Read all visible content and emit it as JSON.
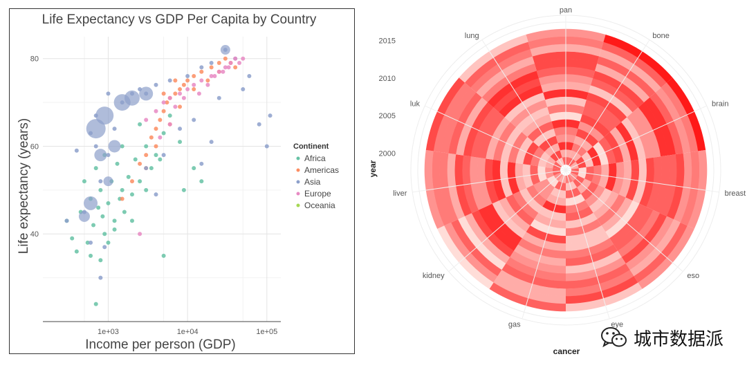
{
  "chart_data": [
    {
      "type": "scatter",
      "title": "Life Expectancy vs GDP Per Capita by Country",
      "xlabel": "Income per person (GDP)",
      "ylabel": "Life expectancy (years)",
      "x_scale": "log10",
      "xlim": [
        150,
        150000
      ],
      "ylim": [
        20,
        85
      ],
      "x_ticks": [
        1000,
        10000,
        100000
      ],
      "x_tick_labels": [
        "1e+03",
        "1e+04",
        "1e+05"
      ],
      "y_ticks": [
        40,
        60,
        80
      ],
      "y_tick_labels": [
        "40",
        "60",
        "80"
      ],
      "grid": true,
      "legend": {
        "title": "Continent",
        "placement": "right",
        "entries": [
          "Africa",
          "Americas",
          "Asia",
          "Europe",
          "Oceania"
        ]
      },
      "series": [
        {
          "name": "Africa",
          "color": "#66c2a5",
          "points": [
            [
              300,
              43
            ],
            [
              450,
              45
            ],
            [
              500,
              52
            ],
            [
              550,
              38
            ],
            [
              600,
              48
            ],
            [
              650,
              42
            ],
            [
              700,
              55
            ],
            [
              750,
              46
            ],
            [
              800,
              50
            ],
            [
              850,
              44
            ],
            [
              900,
              40
            ],
            [
              1000,
              47
            ],
            [
              1100,
              52
            ],
            [
              1200,
              43
            ],
            [
              1300,
              56
            ],
            [
              1400,
              48
            ],
            [
              1500,
              50
            ],
            [
              1600,
              45
            ],
            [
              1800,
              53
            ],
            [
              2000,
              49
            ],
            [
              2200,
              57
            ],
            [
              2500,
              52
            ],
            [
              3000,
              60
            ],
            [
              3500,
              55
            ],
            [
              4000,
              58
            ],
            [
              5000,
              63
            ],
            [
              6000,
              67
            ],
            [
              8000,
              61
            ],
            [
              12000,
              55
            ],
            [
              700,
              24
            ],
            [
              400,
              36
            ],
            [
              350,
              39
            ],
            [
              1000,
              38
            ],
            [
              2000,
              43
            ],
            [
              3000,
              50
            ],
            [
              1500,
              60
            ],
            [
              900,
              58
            ],
            [
              2500,
              65
            ],
            [
              4500,
              57
            ],
            [
              600,
              35
            ],
            [
              1200,
              41
            ],
            [
              800,
              34
            ],
            [
              5000,
              35
            ],
            [
              9000,
              50
            ],
            [
              15000,
              52
            ]
          ]
        },
        {
          "name": "Americas",
          "color": "#fc8d62",
          "points": [
            [
              1500,
              48
            ],
            [
              2000,
              52
            ],
            [
              2500,
              56
            ],
            [
              3000,
              58
            ],
            [
              3500,
              62
            ],
            [
              4000,
              64
            ],
            [
              4500,
              66
            ],
            [
              5000,
              68
            ],
            [
              5500,
              70
            ],
            [
              6000,
              71
            ],
            [
              7000,
              72
            ],
            [
              8000,
              73
            ],
            [
              9000,
              74
            ],
            [
              10000,
              75
            ],
            [
              12000,
              76
            ],
            [
              15000,
              77
            ],
            [
              20000,
              78
            ],
            [
              25000,
              79
            ],
            [
              30000,
              80
            ],
            [
              35000,
              79
            ],
            [
              40000,
              78
            ],
            [
              4000,
              60
            ],
            [
              6000,
              65
            ],
            [
              8000,
              69
            ],
            [
              3000,
              55
            ],
            [
              12000,
              73
            ],
            [
              18000,
              75
            ],
            [
              25000,
              77
            ],
            [
              5000,
              72
            ],
            [
              7000,
              75
            ]
          ]
        },
        {
          "name": "Asia",
          "color": "#8da0cb",
          "points": [
            [
              300,
              43
            ],
            [
              500,
              45
            ],
            [
              600,
              63
            ],
            [
              700,
              67
            ],
            [
              800,
              52
            ],
            [
              1000,
              58
            ],
            [
              1200,
              64
            ],
            [
              1500,
              70
            ],
            [
              2000,
              72
            ],
            [
              2500,
              73
            ],
            [
              3000,
              72
            ],
            [
              1000,
              72
            ],
            [
              4000,
              74
            ],
            [
              6000,
              75
            ],
            [
              10000,
              76
            ],
            [
              15000,
              78
            ],
            [
              20000,
              79
            ],
            [
              30000,
              82
            ],
            [
              40000,
              80
            ],
            [
              60000,
              76
            ],
            [
              80000,
              65
            ],
            [
              100000,
              60
            ],
            [
              110000,
              67
            ],
            [
              600,
              38
            ],
            [
              800,
              30
            ],
            [
              400,
              59
            ],
            [
              700,
              60
            ],
            [
              900,
              37
            ],
            [
              50000,
              73
            ],
            [
              25000,
              71
            ],
            [
              12000,
              66
            ],
            [
              8000,
              64
            ],
            [
              5000,
              58
            ],
            [
              15000,
              56
            ],
            [
              20000,
              61
            ],
            [
              4000,
              49
            ],
            [
              3000,
              55
            ]
          ],
          "big": [
            [
              700,
              64,
              14
            ],
            [
              900,
              67,
              13
            ],
            [
              1500,
              70,
              12
            ],
            [
              2000,
              71,
              11
            ],
            [
              3000,
              72,
              10
            ],
            [
              600,
              47,
              10
            ],
            [
              800,
              58,
              9
            ],
            [
              1200,
              60,
              9
            ],
            [
              500,
              44,
              8
            ],
            [
              30000,
              82,
              7
            ],
            [
              1000,
              52,
              7
            ]
          ]
        },
        {
          "name": "Europe",
          "color": "#e78ac3",
          "points": [
            [
              3000,
              66
            ],
            [
              4000,
              68
            ],
            [
              5000,
              70
            ],
            [
              6000,
              71
            ],
            [
              8000,
              72
            ],
            [
              10000,
              73
            ],
            [
              12000,
              74
            ],
            [
              15000,
              75
            ],
            [
              20000,
              76
            ],
            [
              25000,
              77
            ],
            [
              30000,
              78
            ],
            [
              35000,
              79
            ],
            [
              40000,
              80
            ],
            [
              45000,
              79
            ],
            [
              50000,
              80
            ],
            [
              7000,
              69
            ],
            [
              9000,
              71
            ],
            [
              14000,
              72
            ],
            [
              18000,
              74
            ],
            [
              22000,
              76
            ],
            [
              28000,
              77
            ],
            [
              33000,
              78
            ],
            [
              4500,
              62
            ],
            [
              6000,
              65
            ],
            [
              2500,
              40
            ]
          ]
        },
        {
          "name": "Oceania",
          "color": "#a6d854",
          "points": []
        }
      ]
    },
    {
      "type": "heatmap",
      "subtype": "polar",
      "xlabel": "cancer",
      "ylabel": "year",
      "categories": [
        "pan",
        "bone",
        "brain",
        "breast",
        "eso",
        "eye",
        "gas",
        "kidney",
        "liver",
        "luk",
        "lung"
      ],
      "years": [
        1999,
        2000,
        2001,
        2002,
        2003,
        2004,
        2005,
        2006,
        2007,
        2008,
        2009,
        2010,
        2011,
        2012,
        2013,
        2014,
        2015,
        2016
      ],
      "y_ticks": [
        2000,
        2005,
        2010,
        2015
      ],
      "y_tick_labels": [
        "2000",
        "2005",
        "2010",
        "2015"
      ],
      "color_low": "#fff5f0",
      "color_high": "#ff0000",
      "values": [
        [
          0.6,
          0.3,
          0.8,
          0.4,
          0.5,
          0.8,
          0.1,
          0.5,
          0.2,
          0.8,
          0.3,
          0.4,
          0.6,
          0.7,
          0.7,
          0.3,
          0.5,
          0.4
        ],
        [
          0.6,
          0.3,
          0.5,
          0.3,
          0.7,
          0.4,
          0.7,
          0.6,
          0.6,
          0.7,
          0.2,
          0.6,
          0.7,
          0.3,
          0.6,
          0.3,
          0.6,
          0.9
        ],
        [
          0.3,
          0.7,
          0.2,
          0.8,
          0.1,
          0.6,
          0.7,
          0.3,
          0.8,
          0.2,
          0.4,
          0.4,
          0.8,
          0.8,
          0.6,
          0.4,
          0.5,
          0.9
        ],
        [
          0.6,
          0.1,
          0.6,
          0.5,
          0.3,
          0.8,
          0.4,
          0.3,
          0.7,
          0.2,
          0.7,
          0.6,
          0.6,
          0.6,
          0.7,
          0.4,
          0.5,
          0.4
        ],
        [
          0.4,
          0.6,
          0.3,
          0.6,
          0.4,
          0.2,
          0.3,
          0.5,
          0.3,
          0.1,
          0.6,
          0.6,
          0.5,
          0.7,
          0.4,
          0.3,
          0.6,
          0.4
        ],
        [
          0.5,
          0.2,
          0.6,
          0.1,
          0.5,
          0.6,
          0.2,
          0.5,
          0.2,
          0.2,
          0.5,
          0.6,
          0.2,
          0.4,
          0.6,
          0.5,
          0.7,
          0.2
        ],
        [
          0.3,
          0.6,
          0.2,
          0.3,
          0.8,
          0.2,
          0.3,
          0.1,
          0.7,
          0.3,
          0.5,
          0.3,
          0.4,
          0.5,
          0.6,
          0.3,
          0.3,
          0.6
        ],
        [
          0.4,
          0.1,
          0.4,
          0.4,
          0.5,
          0.2,
          0.5,
          0.6,
          0.3,
          0.2,
          0.8,
          0.8,
          0.7,
          0.3,
          0.1,
          0.6,
          0.4,
          0.1
        ],
        [
          0.6,
          0.4,
          0.1,
          0.6,
          0.2,
          0.3,
          0.8,
          0.2,
          0.8,
          0.7,
          0.4,
          0.4,
          0.6,
          0.7,
          0.3,
          0.5,
          0.5,
          0.4
        ],
        [
          0.6,
          0.3,
          0.2,
          0.5,
          0.7,
          0.2,
          0.5,
          0.2,
          0.5,
          0.3,
          0.6,
          0.6,
          0.7,
          0.3,
          0.6,
          0.5,
          0.5,
          0.7
        ],
        [
          0.2,
          0.7,
          0.3,
          0.7,
          0.2,
          0.6,
          0.3,
          0.2,
          0.4,
          0.2,
          0.8,
          0.7,
          0.8,
          0.5,
          0.3,
          0.5,
          0.6,
          0.2
        ]
      ]
    }
  ],
  "watermark": {
    "text": "城市数据派",
    "icon": "wechat-icon"
  }
}
